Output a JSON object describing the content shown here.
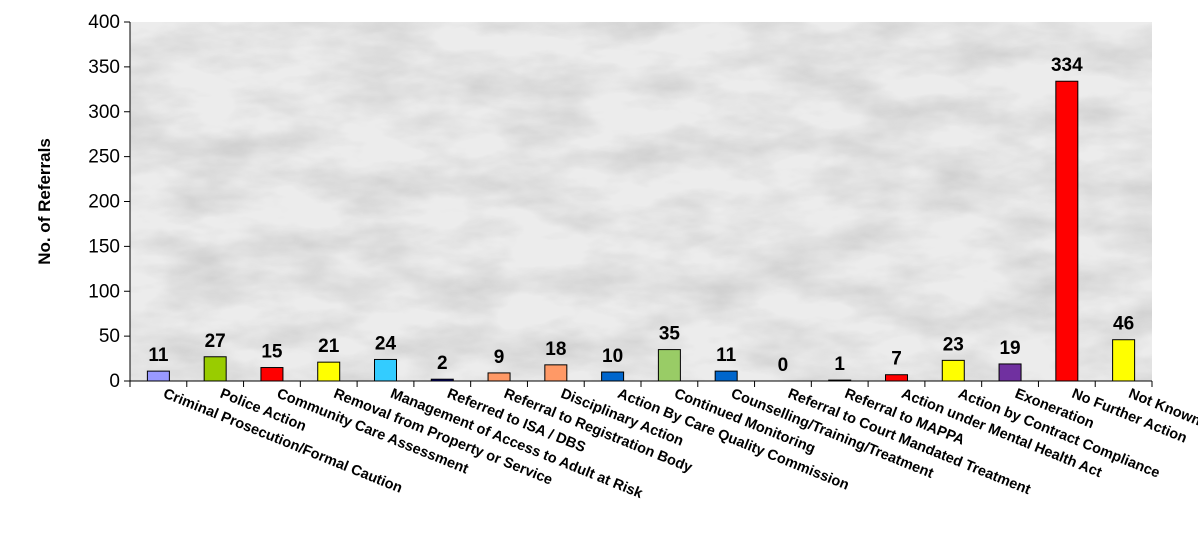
{
  "chart_data": {
    "type": "bar",
    "title": "",
    "xlabel": "",
    "ylabel": "No. of Referrals",
    "ylim": [
      0,
      400
    ],
    "yticks": [
      0,
      50,
      100,
      150,
      200,
      250,
      300,
      350,
      400
    ],
    "grid": false,
    "legend": "none",
    "categories": [
      "Criminal Prosecution/Formal Caution",
      "Police Action",
      "Community Care Assessment",
      "Removal from Property or Service",
      "Management of Access to Adult at Risk",
      "Referred to ISA / DBS",
      "Referral to Registration Body",
      "Disciplinary Action",
      "Action By Care Quality Commission",
      "Continued Monitoring",
      "Counselling/Training/Treatment",
      "Referral to Court Mandated Treatment",
      "Referral to MAPPA",
      "Action under Mental Health Act",
      "Action by Contract Compliance",
      "Exoneration",
      "No Further Action",
      "Not Known"
    ],
    "values": [
      11,
      27,
      15,
      21,
      24,
      2,
      9,
      18,
      10,
      35,
      11,
      0,
      1,
      7,
      23,
      19,
      334,
      46
    ],
    "colors": [
      "#9999ff",
      "#99cc00",
      "#ff0000",
      "#ffff00",
      "#33ccff",
      "#000080",
      "#ff9966",
      "#ff9966",
      "#0066cc",
      "#99cc66",
      "#0066cc",
      "#c0c0c0",
      "#000000",
      "#ff0000",
      "#ffff00",
      "#7030a0",
      "#ff0000",
      "#ffff00"
    ],
    "background": "marble-texture"
  }
}
